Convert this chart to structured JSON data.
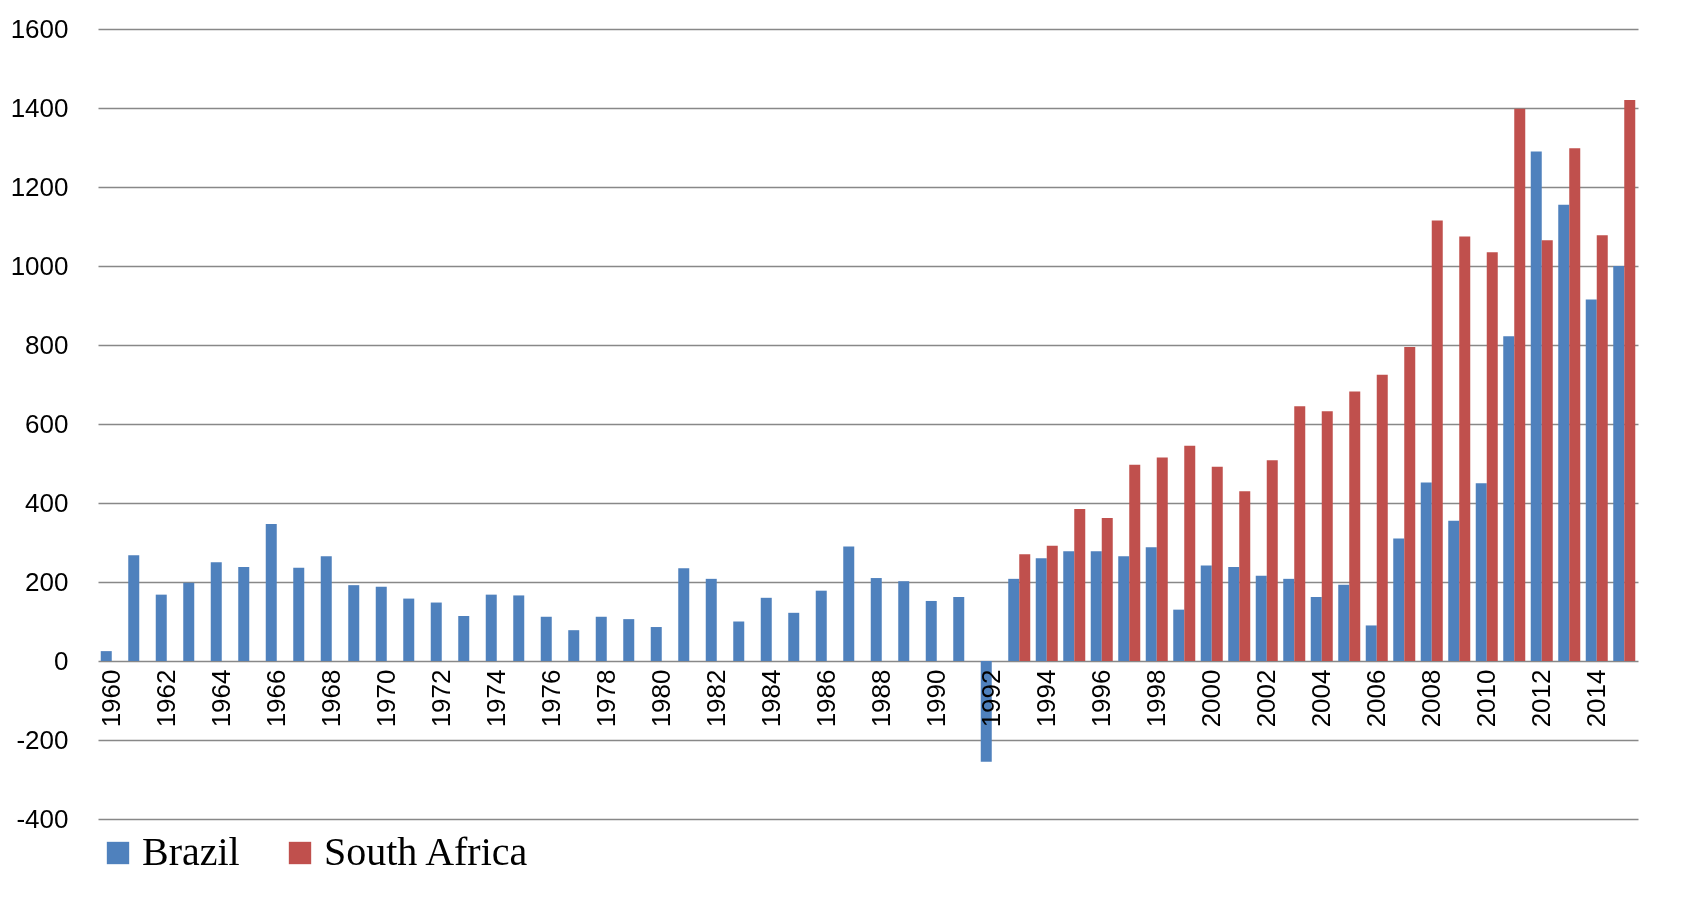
{
  "chart_data": {
    "type": "bar",
    "categories": [
      "1960",
      null,
      "1962",
      null,
      "1964",
      null,
      "1966",
      null,
      "1968",
      null,
      "1970",
      null,
      "1972",
      null,
      "1974",
      null,
      "1976",
      null,
      "1978",
      null,
      "1980",
      null,
      "1982",
      null,
      "1984",
      null,
      "1986",
      null,
      "1988",
      null,
      "1990",
      null,
      "1992",
      null,
      "1994",
      null,
      "1996",
      null,
      "1998",
      null,
      "2000",
      null,
      "2002",
      null,
      "2004",
      null,
      "2006",
      null,
      "2008",
      null,
      "2010",
      null,
      "2012",
      null,
      "2014",
      null
    ],
    "series": [
      {
        "name": "Brazil",
        "color": "#4f81bd",
        "values": [
          25,
          268,
          168,
          198,
          250,
          238,
          347,
          236,
          265,
          192,
          188,
          158,
          148,
          114,
          168,
          166,
          112,
          78,
          112,
          106,
          86,
          235,
          208,
          100,
          160,
          122,
          178,
          290,
          210,
          202,
          152,
          162,
          -255,
          208,
          260,
          278,
          278,
          265,
          288,
          130,
          242,
          238,
          216,
          208,
          162,
          193,
          90,
          310,
          452,
          355,
          450,
          822,
          1290,
          1155,
          915,
          1000
        ]
      },
      {
        "name": "South Africa",
        "color": "#c0504d",
        "values": [
          null,
          null,
          null,
          null,
          null,
          null,
          null,
          null,
          null,
          null,
          null,
          null,
          null,
          null,
          null,
          null,
          null,
          null,
          null,
          null,
          null,
          null,
          null,
          null,
          null,
          null,
          null,
          null,
          null,
          null,
          null,
          null,
          null,
          270,
          292,
          385,
          362,
          497,
          515,
          545,
          492,
          430,
          508,
          645,
          632,
          682,
          725,
          795,
          1115,
          1075,
          1035,
          1398,
          1065,
          1298,
          1078,
          1420
        ]
      }
    ],
    "ylim": [
      -400,
      1600
    ],
    "yticks": [
      -400,
      -200,
      0,
      200,
      400,
      600,
      800,
      1000,
      1200,
      1400,
      1600
    ],
    "grid": "y",
    "legend": "bottom"
  }
}
